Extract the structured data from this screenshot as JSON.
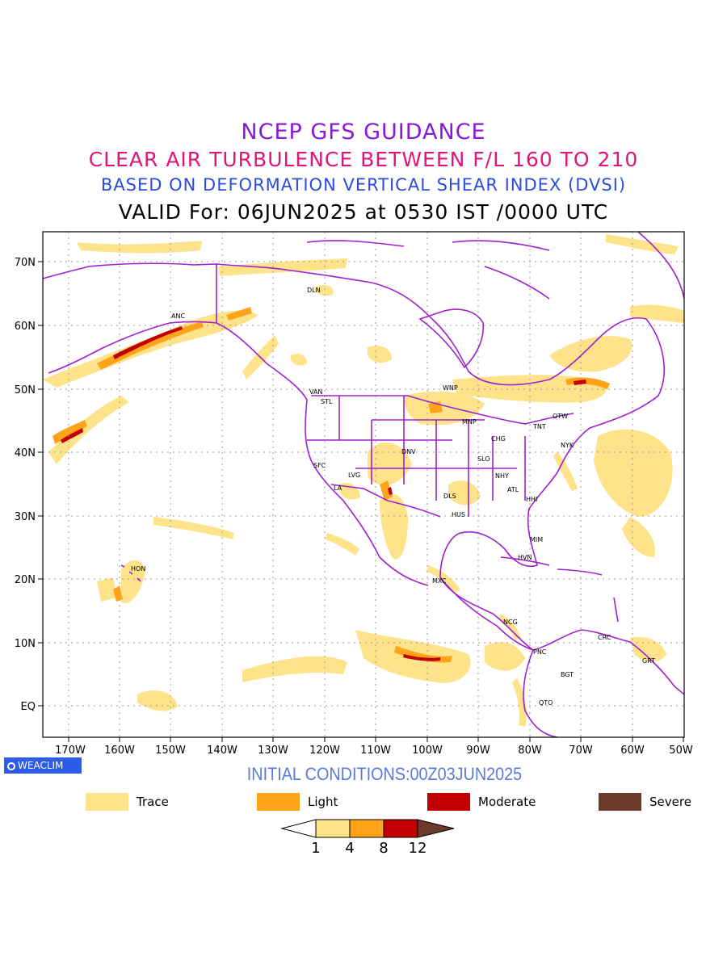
{
  "titles": {
    "line1": "NCEP GFS GUIDANCE",
    "line2": "CLEAR AIR TURBULENCE BETWEEN F/L 160 TO 210",
    "line3": "BASED ON DEFORMATION VERTICAL SHEAR INDEX (DVSI)",
    "line4": "VALID For: 06JUN2025 at 0530 IST /0000 UTC"
  },
  "map": {
    "lat_labels": [
      "70N",
      "60N",
      "50N",
      "40N",
      "30N",
      "20N",
      "10N",
      "EQ"
    ],
    "lon_labels": [
      "170W",
      "160W",
      "150W",
      "140W",
      "130W",
      "120W",
      "110W",
      "100W",
      "90W",
      "80W",
      "70W",
      "60W",
      "50W"
    ],
    "boundary_color": "#a020d0",
    "cities": [
      {
        "name": "ANC"
      },
      {
        "name": "DLN"
      },
      {
        "name": "VAN"
      },
      {
        "name": "STL"
      },
      {
        "name": "WNP"
      },
      {
        "name": "MNP"
      },
      {
        "name": "OTW"
      },
      {
        "name": "TNT"
      },
      {
        "name": "CHG"
      },
      {
        "name": "NYK"
      },
      {
        "name": "DNV"
      },
      {
        "name": "SFC"
      },
      {
        "name": "LVG"
      },
      {
        "name": "SLO"
      },
      {
        "name": "LA"
      },
      {
        "name": "NHY"
      },
      {
        "name": "ATL"
      },
      {
        "name": "DLS"
      },
      {
        "name": "HHI"
      },
      {
        "name": "HUS"
      },
      {
        "name": "MIM"
      },
      {
        "name": "HVN"
      },
      {
        "name": "HON"
      },
      {
        "name": "MXC"
      },
      {
        "name": "NCG"
      },
      {
        "name": "CRC"
      },
      {
        "name": "PNC"
      },
      {
        "name": "GRT"
      },
      {
        "name": "BGT"
      },
      {
        "name": "QTO"
      }
    ]
  },
  "brand": {
    "label": "WEACLIM"
  },
  "initial_conditions": "INITIAL CONDITIONS:00Z03JUN2025",
  "legend": [
    {
      "label": "Trace",
      "color": "#ffe38a"
    },
    {
      "label": "Light",
      "color": "#ffa31a"
    },
    {
      "label": "Moderate",
      "color": "#c00000"
    },
    {
      "label": "Severe",
      "color": "#6b3a2a"
    }
  ],
  "colorbar": {
    "ticks": [
      "1",
      "4",
      "8",
      "12"
    ],
    "colors": [
      "#ffffff",
      "#ffe38a",
      "#ffa31a",
      "#c00000",
      "#6b3a2a"
    ]
  }
}
